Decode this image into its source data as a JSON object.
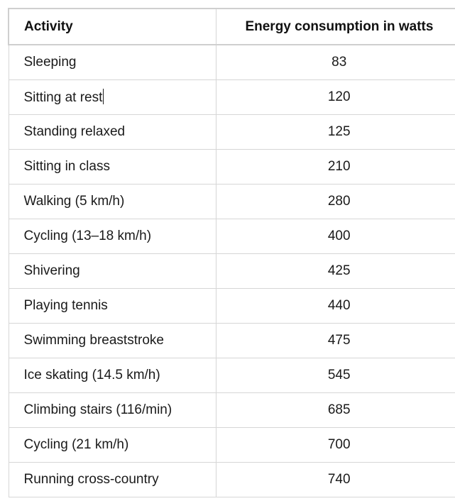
{
  "table": {
    "headers": {
      "activity": "Activity",
      "energy": "Energy consumption in watts"
    },
    "rows": [
      {
        "activity": "Sleeping",
        "energy": "83"
      },
      {
        "activity": "Sitting at rest",
        "energy": "120"
      },
      {
        "activity": "Standing relaxed",
        "energy": "125"
      },
      {
        "activity": "Sitting in class",
        "energy": "210"
      },
      {
        "activity": "Walking (5 km/h)",
        "energy": "280"
      },
      {
        "activity": "Cycling (13–18 km/h)",
        "energy": "400"
      },
      {
        "activity": "Shivering",
        "energy": "425"
      },
      {
        "activity": "Playing tennis",
        "energy": "440"
      },
      {
        "activity": "Swimming breaststroke",
        "energy": "475"
      },
      {
        "activity": "Ice skating (14.5 km/h)",
        "energy": "545"
      },
      {
        "activity": "Climbing stairs (116/min)",
        "energy": "685"
      },
      {
        "activity": "Cycling (21 km/h)",
        "energy": "700"
      },
      {
        "activity": "Running cross-country",
        "energy": "740"
      }
    ]
  }
}
